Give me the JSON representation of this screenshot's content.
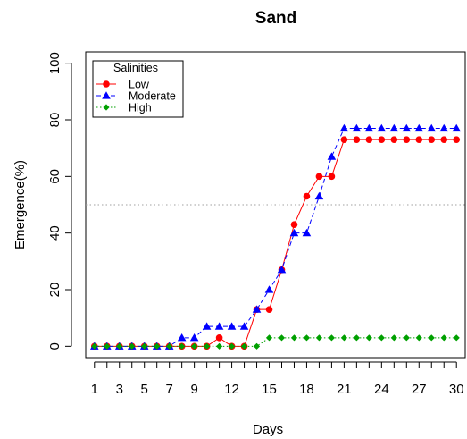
{
  "chart_data": {
    "type": "line",
    "title": "Sand",
    "xlabel": "Days",
    "ylabel": "Emergence(%)",
    "xlim": [
      0.3,
      30.7
    ],
    "ylim": [
      -4,
      104
    ],
    "x_ticks": [
      1,
      3,
      5,
      7,
      9,
      12,
      15,
      18,
      21,
      24,
      27,
      30
    ],
    "y_ticks": [
      0,
      20,
      40,
      60,
      80,
      100
    ],
    "reference_line": 50,
    "grid": false,
    "legend": {
      "title": "Salinities",
      "position": "top-left"
    },
    "x": [
      1,
      2,
      3,
      4,
      5,
      6,
      7,
      8,
      9,
      10,
      11,
      12,
      13,
      14,
      15,
      16,
      17,
      18,
      19,
      20,
      21,
      22,
      23,
      24,
      25,
      26,
      27,
      28,
      29,
      30
    ],
    "series": [
      {
        "name": "Low",
        "color": "#ff0000",
        "marker": "circle",
        "linestyle": "solid",
        "values": [
          0,
          0,
          0,
          0,
          0,
          0,
          0,
          0,
          0,
          0,
          3,
          0,
          0,
          13,
          13,
          27,
          43,
          53,
          60,
          60,
          73,
          73,
          73,
          73,
          73,
          73,
          73,
          73,
          73,
          73
        ]
      },
      {
        "name": "Moderate",
        "color": "#0000ff",
        "marker": "triangle",
        "linestyle": "dashed",
        "values": [
          0,
          0,
          0,
          0,
          0,
          0,
          0,
          3,
          3,
          7,
          7,
          7,
          7,
          13,
          20,
          27,
          40,
          40,
          53,
          67,
          77,
          77,
          77,
          77,
          77,
          77,
          77,
          77,
          77,
          77
        ]
      },
      {
        "name": "High",
        "color": "#00a000",
        "marker": "diamond",
        "linestyle": "dotted",
        "values": [
          0,
          0,
          0,
          0,
          0,
          0,
          0,
          0,
          0,
          0,
          0,
          0,
          0,
          0,
          3,
          3,
          3,
          3,
          3,
          3,
          3,
          3,
          3,
          3,
          3,
          3,
          3,
          3,
          3,
          3
        ]
      }
    ]
  }
}
